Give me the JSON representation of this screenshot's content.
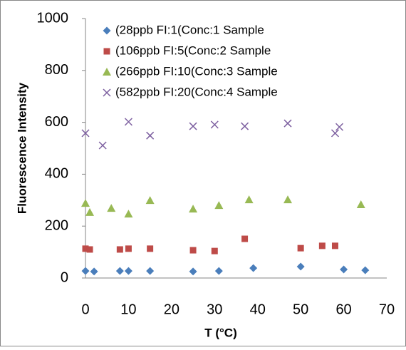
{
  "chart_data": {
    "type": "scatter",
    "xlabel": "T (°C)",
    "ylabel": "Fluorescence Intensity",
    "xlim": [
      0,
      70
    ],
    "xticks": [
      0,
      10,
      20,
      30,
      40,
      50,
      60,
      70
    ],
    "ylim": [
      0,
      1000
    ],
    "yticks": [
      0,
      200,
      400,
      600,
      800,
      1000
    ],
    "legend": "top",
    "series": [
      {
        "name": "(28ppb FI:1(Conc:1 Sample",
        "color": "#4a7ebb",
        "marker": "diamond",
        "x": [
          0,
          2,
          8,
          10,
          15,
          25,
          31,
          39,
          50,
          60,
          65
        ],
        "values": [
          27,
          25,
          27,
          27,
          27,
          25,
          27,
          38,
          44,
          33,
          30
        ]
      },
      {
        "name": "(106ppb FI:5(Conc:2 Sample",
        "color": "#be4b48",
        "marker": "square",
        "x": [
          0,
          1,
          8,
          10,
          15,
          25,
          30,
          37,
          50,
          55,
          58
        ],
        "values": [
          113,
          110,
          110,
          113,
          113,
          107,
          104,
          151,
          115,
          124,
          124
        ]
      },
      {
        "name": "(266ppb FI:10(Conc:3 Sample",
        "color": "#98b954",
        "marker": "triangle",
        "x": [
          0,
          1,
          6,
          10,
          15,
          25,
          31,
          38,
          47,
          64
        ],
        "values": [
          288,
          253,
          269,
          247,
          299,
          266,
          280,
          302,
          302,
          283
        ]
      },
      {
        "name": "(582ppb FI:20(Conc:4 Sample",
        "color": "#7d60a0",
        "marker": "cross",
        "x": [
          0,
          4,
          10,
          15,
          25,
          30,
          37,
          47,
          58,
          59
        ],
        "values": [
          558,
          511,
          602,
          549,
          585,
          591,
          585,
          596,
          558,
          582
        ]
      }
    ]
  }
}
